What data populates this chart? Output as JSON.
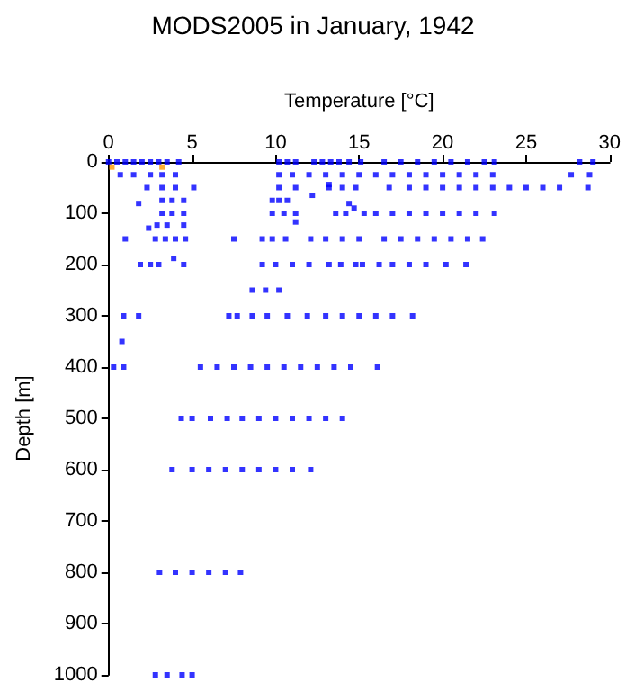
{
  "chart_data": {
    "type": "scatter",
    "title": "MODS2005 in January, 1942",
    "xlabel": "Temperature [°C]",
    "ylabel": "Depth [m]",
    "xlim": [
      0,
      30
    ],
    "xticks": [
      0,
      5,
      10,
      15,
      20,
      25,
      30
    ],
    "ylim": [
      1000,
      0
    ],
    "yticks": [
      0,
      100,
      200,
      300,
      400,
      500,
      600,
      700,
      800,
      900,
      1000
    ],
    "grid": false,
    "marker": "square",
    "series": [
      {
        "color": "#0000ff",
        "x": [
          0,
          0.5,
          1,
          1.5,
          2,
          2.5,
          3,
          3.5,
          4.2,
          10.2,
          10.7,
          11.2,
          12.3,
          12.8,
          13.3,
          13.8,
          14.4,
          15.1,
          16.5,
          17.5,
          18.5,
          19.5,
          20.5,
          21.5,
          22.5,
          23.1,
          28.2,
          29.0,
          0.7,
          1.5,
          2.5,
          3.2,
          4.0,
          10.2,
          11,
          12,
          13,
          14,
          15,
          16,
          17,
          18,
          19,
          20,
          21,
          22,
          23,
          27.7,
          28.8,
          2.3,
          3.2,
          4.0,
          5.1,
          10.2,
          11.2,
          13.2,
          14,
          14.8,
          16.8,
          18,
          19,
          20,
          21,
          22,
          23,
          24,
          25,
          26,
          27,
          28.7,
          12.2,
          13.2,
          3.2,
          3.8,
          4.5,
          9.8,
          10.2,
          10.7,
          1.8,
          14.4,
          14.7,
          3.2,
          3.8,
          4.5,
          9.8,
          10.5,
          11.2,
          13.6,
          14.2,
          15.3,
          16,
          17,
          18,
          19,
          20,
          21,
          22,
          23.1,
          11.2,
          2.4,
          2.9,
          3.5,
          4.5,
          1.0,
          2.8,
          3.4,
          4.0,
          4.6,
          7.5,
          9.2,
          9.8,
          10.6,
          12.1,
          13,
          14,
          15.0,
          16.5,
          17.5,
          18.5,
          19.5,
          20.5,
          21.5,
          22.4,
          3.9,
          1.9,
          2.5,
          3.0,
          4.5,
          9.2,
          10,
          11,
          12,
          13.2,
          13.9,
          14.8,
          15.2,
          16.2,
          17,
          18,
          19,
          20.2,
          21.4,
          8.6,
          9.4,
          10.2,
          0.9,
          1.8,
          7.2,
          7.7,
          8.6,
          9.5,
          10.7,
          11.9,
          13,
          14,
          15,
          16,
          17,
          18.2,
          0.8,
          0.3,
          0.9,
          5.5,
          6.5,
          7.5,
          8.5,
          9.5,
          10.5,
          11.5,
          12.5,
          13.5,
          14.5,
          16.1,
          4.35,
          5,
          6.1,
          7.1,
          8,
          9,
          10,
          11,
          12,
          13,
          14.0,
          3.8,
          5,
          6,
          7,
          8,
          9,
          10,
          11,
          12.1,
          3.05,
          4,
          5,
          6.0,
          7,
          7.9,
          2.8,
          3.5,
          4.4,
          5.0
        ],
        "values": [
          0,
          0,
          0,
          0,
          0,
          0,
          0,
          0,
          0,
          0,
          0,
          0,
          0,
          0,
          0,
          0,
          0,
          0,
          0,
          0,
          0,
          0,
          0,
          0,
          0,
          0,
          0,
          0,
          25,
          25,
          25,
          25,
          25,
          25,
          25,
          25,
          25,
          25,
          25,
          25,
          25,
          25,
          25,
          25,
          25,
          25,
          25,
          25,
          25,
          50,
          50,
          50,
          50,
          50,
          50,
          50,
          50,
          50,
          50,
          50,
          50,
          50,
          50,
          50,
          50,
          50,
          50,
          50,
          50,
          50,
          65,
          44,
          75,
          75,
          75,
          75,
          75,
          75,
          81,
          81,
          90,
          100,
          100,
          100,
          100,
          100,
          100,
          100,
          100,
          100,
          100,
          100,
          100,
          100,
          100,
          100,
          100,
          100,
          117,
          129,
          123,
          123,
          123,
          150,
          150,
          150,
          150,
          150,
          150,
          150,
          150,
          150,
          150,
          150,
          150,
          150,
          150,
          150,
          150,
          150,
          150,
          150,
          150,
          188,
          200,
          200,
          200,
          200,
          200,
          200,
          200,
          200,
          200,
          200,
          200,
          200,
          200,
          200,
          200,
          200,
          200,
          200,
          250,
          250,
          250,
          300,
          300,
          300,
          300,
          300,
          300,
          300,
          300,
          300,
          300,
          300,
          300,
          300,
          300,
          350,
          400,
          400,
          400,
          400,
          400,
          400,
          400,
          400,
          400,
          400,
          400,
          400,
          400,
          500,
          500,
          500,
          500,
          500,
          500,
          500,
          500,
          500,
          500,
          500,
          600,
          600,
          600,
          600,
          600,
          600,
          600,
          600,
          600,
          800,
          800,
          800,
          800,
          800,
          800,
          1000,
          1000,
          1000,
          1000
        ]
      },
      {
        "color": "#ff9900",
        "x": [
          0.2,
          3.2
        ],
        "values": [
          10,
          10
        ]
      }
    ]
  }
}
